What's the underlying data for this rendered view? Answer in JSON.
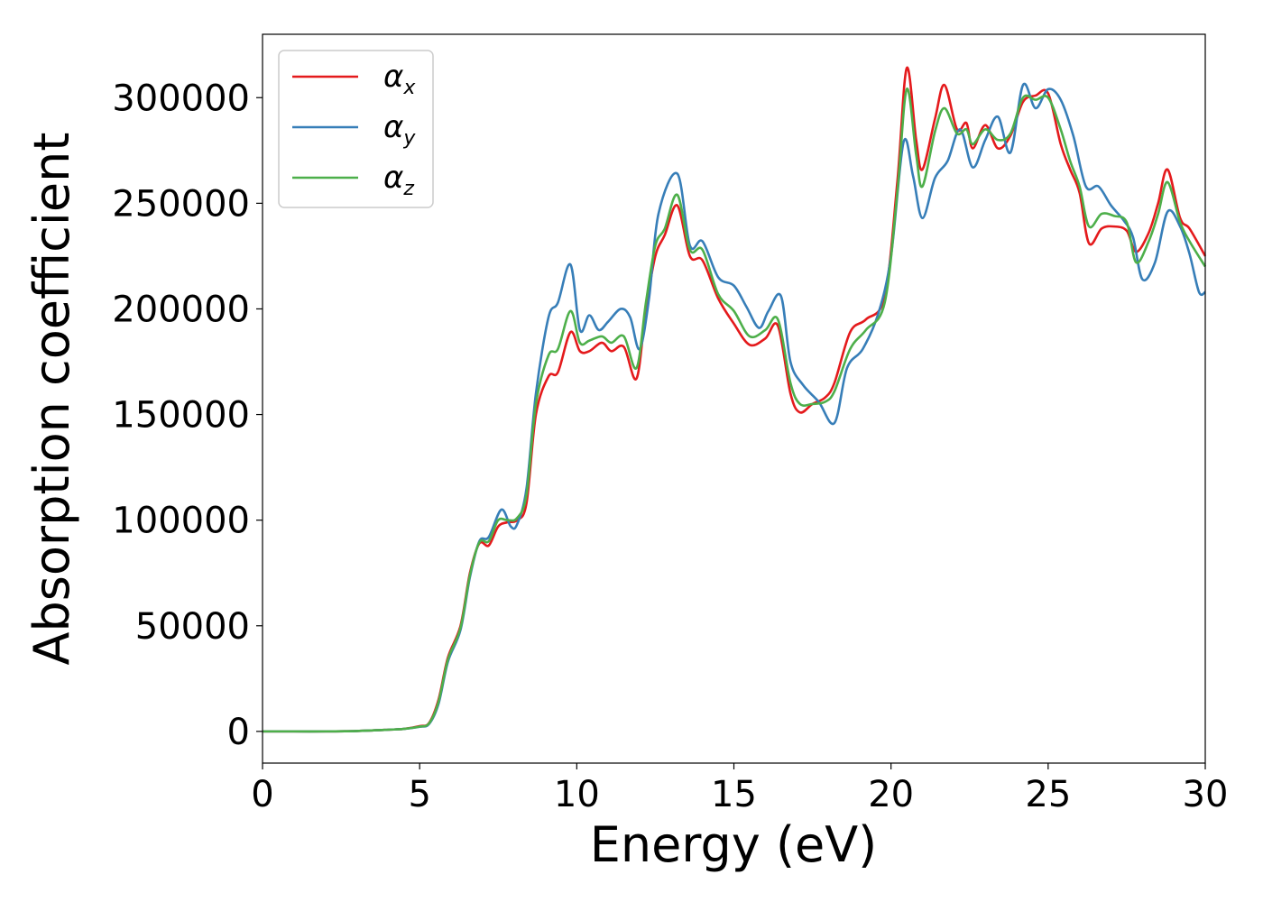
{
  "chart_data": {
    "type": "line",
    "title": "",
    "xlabel": "Energy (eV)",
    "ylabel": "Absorption coefficient",
    "xlim": [
      0,
      30
    ],
    "ylim": [
      -15000,
      330000
    ],
    "xticks": [
      0,
      5,
      10,
      15,
      20,
      25,
      30
    ],
    "xtick_labels": [
      "0",
      "5",
      "10",
      "15",
      "20",
      "25",
      "30"
    ],
    "yticks": [
      0,
      50000,
      100000,
      150000,
      200000,
      250000,
      300000
    ],
    "ytick_labels": [
      "0",
      "50000",
      "100000",
      "150000",
      "200000",
      "250000",
      "300000"
    ],
    "grid": false,
    "legend_position": "top-left",
    "series": [
      {
        "name": "αx",
        "label_base": "α",
        "label_sub": "x",
        "color": "#e41a1c",
        "points": [
          [
            0,
            0
          ],
          [
            1,
            0
          ],
          [
            2,
            0
          ],
          [
            3,
            200
          ],
          [
            4,
            800
          ],
          [
            4.5,
            1200
          ],
          [
            5,
            2500
          ],
          [
            5.3,
            4000
          ],
          [
            5.6,
            15000
          ],
          [
            5.9,
            35000
          ],
          [
            6.3,
            50000
          ],
          [
            6.6,
            75000
          ],
          [
            6.9,
            89000
          ],
          [
            7.2,
            88000
          ],
          [
            7.5,
            97000
          ],
          [
            7.8,
            99000
          ],
          [
            8.1,
            100000
          ],
          [
            8.4,
            108000
          ],
          [
            8.7,
            150000
          ],
          [
            9.1,
            168000
          ],
          [
            9.4,
            170000
          ],
          [
            9.8,
            189000
          ],
          [
            10.1,
            180000
          ],
          [
            10.4,
            180000
          ],
          [
            10.8,
            184000
          ],
          [
            11.1,
            180000
          ],
          [
            11.5,
            182000
          ],
          [
            11.9,
            167000
          ],
          [
            12.2,
            200000
          ],
          [
            12.5,
            225000
          ],
          [
            12.8,
            235000
          ],
          [
            13.2,
            249000
          ],
          [
            13.6,
            225000
          ],
          [
            14.0,
            223000
          ],
          [
            14.5,
            205000
          ],
          [
            15.0,
            193000
          ],
          [
            15.5,
            183000
          ],
          [
            16.0,
            186000
          ],
          [
            16.4,
            192000
          ],
          [
            16.8,
            160000
          ],
          [
            17.1,
            151000
          ],
          [
            17.5,
            155000
          ],
          [
            17.9,
            158000
          ],
          [
            18.2,
            165000
          ],
          [
            18.7,
            189000
          ],
          [
            19.2,
            195000
          ],
          [
            19.8,
            206000
          ],
          [
            20.2,
            260000
          ],
          [
            20.5,
            314000
          ],
          [
            20.8,
            280000
          ],
          [
            21.0,
            266000
          ],
          [
            21.4,
            290000
          ],
          [
            21.7,
            306000
          ],
          [
            22.1,
            285000
          ],
          [
            22.4,
            288000
          ],
          [
            22.6,
            276000
          ],
          [
            23.0,
            287000
          ],
          [
            23.4,
            276000
          ],
          [
            23.8,
            282000
          ],
          [
            24.2,
            298000
          ],
          [
            24.6,
            301000
          ],
          [
            25.0,
            302000
          ],
          [
            25.4,
            278000
          ],
          [
            25.7,
            266000
          ],
          [
            26.0,
            255000
          ],
          [
            26.3,
            231000
          ],
          [
            26.7,
            238000
          ],
          [
            27.1,
            239000
          ],
          [
            27.5,
            237000
          ],
          [
            27.8,
            227000
          ],
          [
            28.2,
            236000
          ],
          [
            28.5,
            250000
          ],
          [
            28.8,
            266000
          ],
          [
            29.2,
            243000
          ],
          [
            29.5,
            238000
          ],
          [
            30,
            225000
          ]
        ]
      },
      {
        "name": "αy",
        "label_base": "α",
        "label_sub": "y",
        "color": "#377eb8",
        "points": [
          [
            0,
            0
          ],
          [
            1,
            0
          ],
          [
            2,
            0
          ],
          [
            3,
            200
          ],
          [
            4,
            800
          ],
          [
            4.5,
            1200
          ],
          [
            5,
            2200
          ],
          [
            5.3,
            3500
          ],
          [
            5.6,
            13000
          ],
          [
            5.9,
            33000
          ],
          [
            6.3,
            48000
          ],
          [
            6.6,
            73000
          ],
          [
            6.9,
            90000
          ],
          [
            7.2,
            92000
          ],
          [
            7.6,
            105000
          ],
          [
            7.9,
            97000
          ],
          [
            8.1,
            98000
          ],
          [
            8.4,
            115000
          ],
          [
            8.7,
            160000
          ],
          [
            9.1,
            196000
          ],
          [
            9.4,
            203000
          ],
          [
            9.8,
            221000
          ],
          [
            10.1,
            190000
          ],
          [
            10.4,
            197000
          ],
          [
            10.7,
            190000
          ],
          [
            11.0,
            194000
          ],
          [
            11.4,
            200000
          ],
          [
            11.7,
            196000
          ],
          [
            12.0,
            181000
          ],
          [
            12.3,
            205000
          ],
          [
            12.6,
            245000
          ],
          [
            13.2,
            264000
          ],
          [
            13.6,
            230000
          ],
          [
            14.0,
            232000
          ],
          [
            14.5,
            215000
          ],
          [
            15.0,
            211000
          ],
          [
            15.4,
            201000
          ],
          [
            15.8,
            191000
          ],
          [
            16.1,
            199000
          ],
          [
            16.5,
            206000
          ],
          [
            16.8,
            175000
          ],
          [
            17.2,
            164000
          ],
          [
            17.7,
            156000
          ],
          [
            18.2,
            146000
          ],
          [
            18.6,
            172000
          ],
          [
            19.1,
            181000
          ],
          [
            19.6,
            198000
          ],
          [
            20.0,
            225000
          ],
          [
            20.4,
            279000
          ],
          [
            20.7,
            263000
          ],
          [
            21.0,
            243000
          ],
          [
            21.4,
            262000
          ],
          [
            21.8,
            270000
          ],
          [
            22.2,
            285000
          ],
          [
            22.6,
            267000
          ],
          [
            23.0,
            280000
          ],
          [
            23.4,
            291000
          ],
          [
            23.8,
            274000
          ],
          [
            24.2,
            306000
          ],
          [
            24.6,
            295000
          ],
          [
            25.0,
            304000
          ],
          [
            25.4,
            299000
          ],
          [
            25.8,
            282000
          ],
          [
            26.2,
            258000
          ],
          [
            26.6,
            258000
          ],
          [
            27.0,
            249000
          ],
          [
            27.4,
            242000
          ],
          [
            27.7,
            234000
          ],
          [
            28.0,
            214000
          ],
          [
            28.4,
            222000
          ],
          [
            28.8,
            246000
          ],
          [
            29.2,
            239000
          ],
          [
            29.5,
            226000
          ],
          [
            29.8,
            208000
          ],
          [
            30,
            208000
          ]
        ]
      },
      {
        "name": "αz",
        "label_base": "α",
        "label_sub": "z",
        "color": "#4daf4a",
        "points": [
          [
            0,
            0
          ],
          [
            1,
            0
          ],
          [
            2,
            0
          ],
          [
            3,
            200
          ],
          [
            4,
            800
          ],
          [
            4.5,
            1200
          ],
          [
            5,
            2300
          ],
          [
            5.3,
            3800
          ],
          [
            5.6,
            14000
          ],
          [
            5.9,
            34000
          ],
          [
            6.3,
            49000
          ],
          [
            6.6,
            74000
          ],
          [
            6.9,
            89500
          ],
          [
            7.2,
            90000
          ],
          [
            7.5,
            100000
          ],
          [
            7.8,
            100000
          ],
          [
            8.1,
            101000
          ],
          [
            8.4,
            112000
          ],
          [
            8.7,
            155000
          ],
          [
            9.1,
            178000
          ],
          [
            9.4,
            181000
          ],
          [
            9.8,
            199000
          ],
          [
            10.1,
            184000
          ],
          [
            10.4,
            185000
          ],
          [
            10.8,
            187000
          ],
          [
            11.1,
            184000
          ],
          [
            11.5,
            187000
          ],
          [
            11.9,
            172000
          ],
          [
            12.2,
            203000
          ],
          [
            12.5,
            230000
          ],
          [
            12.8,
            238000
          ],
          [
            13.2,
            254000
          ],
          [
            13.6,
            228000
          ],
          [
            14.0,
            228000
          ],
          [
            14.5,
            207000
          ],
          [
            15.0,
            199000
          ],
          [
            15.5,
            187000
          ],
          [
            16.0,
            190000
          ],
          [
            16.4,
            195000
          ],
          [
            16.8,
            165000
          ],
          [
            17.1,
            155000
          ],
          [
            17.5,
            155000
          ],
          [
            17.9,
            156000
          ],
          [
            18.2,
            161000
          ],
          [
            18.7,
            181000
          ],
          [
            19.2,
            190000
          ],
          [
            19.8,
            203000
          ],
          [
            20.2,
            255000
          ],
          [
            20.5,
            304000
          ],
          [
            20.8,
            273000
          ],
          [
            21.0,
            258000
          ],
          [
            21.4,
            284000
          ],
          [
            21.7,
            295000
          ],
          [
            22.1,
            283000
          ],
          [
            22.4,
            285000
          ],
          [
            22.6,
            278000
          ],
          [
            23.0,
            285000
          ],
          [
            23.4,
            280000
          ],
          [
            23.8,
            283000
          ],
          [
            24.2,
            300000
          ],
          [
            24.6,
            299000
          ],
          [
            25.0,
            300000
          ],
          [
            25.4,
            285000
          ],
          [
            25.7,
            270000
          ],
          [
            26.0,
            258000
          ],
          [
            26.3,
            239000
          ],
          [
            26.7,
            245000
          ],
          [
            27.1,
            244000
          ],
          [
            27.5,
            241000
          ],
          [
            27.8,
            222000
          ],
          [
            28.2,
            232000
          ],
          [
            28.5,
            245000
          ],
          [
            28.8,
            260000
          ],
          [
            29.2,
            241000
          ],
          [
            29.5,
            232000
          ],
          [
            30,
            220000
          ]
        ]
      }
    ]
  }
}
